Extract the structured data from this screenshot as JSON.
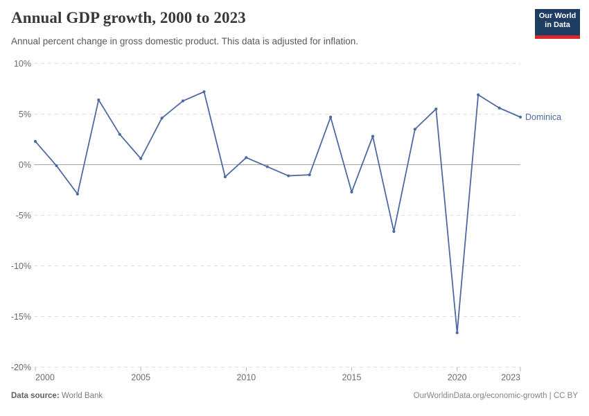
{
  "header": {
    "title": "Annual GDP growth, 2000 to 2023",
    "subtitle": "Annual percent change in gross domestic product. This data is adjusted for inflation.",
    "logo": {
      "line1": "Our World",
      "line2": "in Data",
      "bg_color": "#1d3d63",
      "accent_color": "#d7282f"
    }
  },
  "chart_data": {
    "type": "line",
    "title": "Annual GDP growth, 2000 to 2023",
    "xlabel": "",
    "ylabel": "",
    "x": [
      2000,
      2001,
      2002,
      2003,
      2004,
      2005,
      2006,
      2007,
      2008,
      2009,
      2010,
      2011,
      2012,
      2013,
      2014,
      2015,
      2016,
      2017,
      2018,
      2019,
      2020,
      2021,
      2022,
      2023
    ],
    "series": [
      {
        "name": "Dominica",
        "color": "#4d69a1",
        "values": [
          2.3,
          -0.1,
          -2.9,
          6.4,
          3.0,
          0.6,
          4.6,
          6.3,
          7.2,
          -1.2,
          0.7,
          -0.2,
          -1.1,
          -1.0,
          4.7,
          -2.7,
          2.8,
          -6.6,
          3.5,
          5.5,
          -16.6,
          6.9,
          5.6,
          4.7
        ]
      }
    ],
    "xlim": [
      2000,
      2023
    ],
    "ylim": [
      -20,
      10
    ],
    "y_ticks": [
      {
        "value": 10,
        "label": "10%"
      },
      {
        "value": 5,
        "label": "5%"
      },
      {
        "value": 0,
        "label": "0%"
      },
      {
        "value": -5,
        "label": "-5%"
      },
      {
        "value": -10,
        "label": "-10%"
      },
      {
        "value": -15,
        "label": "-15%"
      },
      {
        "value": -20,
        "label": "-20%"
      }
    ],
    "x_ticks": [
      {
        "value": 2000,
        "label": "2000"
      },
      {
        "value": 2005,
        "label": "2005"
      },
      {
        "value": 2010,
        "label": "2010"
      },
      {
        "value": 2015,
        "label": "2015"
      },
      {
        "value": 2020,
        "label": "2020"
      },
      {
        "value": 2023,
        "label": "2023"
      }
    ],
    "grid": "horizontal-dashed",
    "zero_line": true,
    "legend_position": "end-of-line-label",
    "colors": {
      "gridline": "#dedede",
      "zero_line": "#a8a8a8",
      "tick_label": "#6b6b6b",
      "tick_mark": "#b3b3b3"
    }
  },
  "footer": {
    "datasource_label": "Data source:",
    "datasource_value": "World Bank",
    "credit": "OurWorldinData.org/economic-growth | CC BY"
  }
}
